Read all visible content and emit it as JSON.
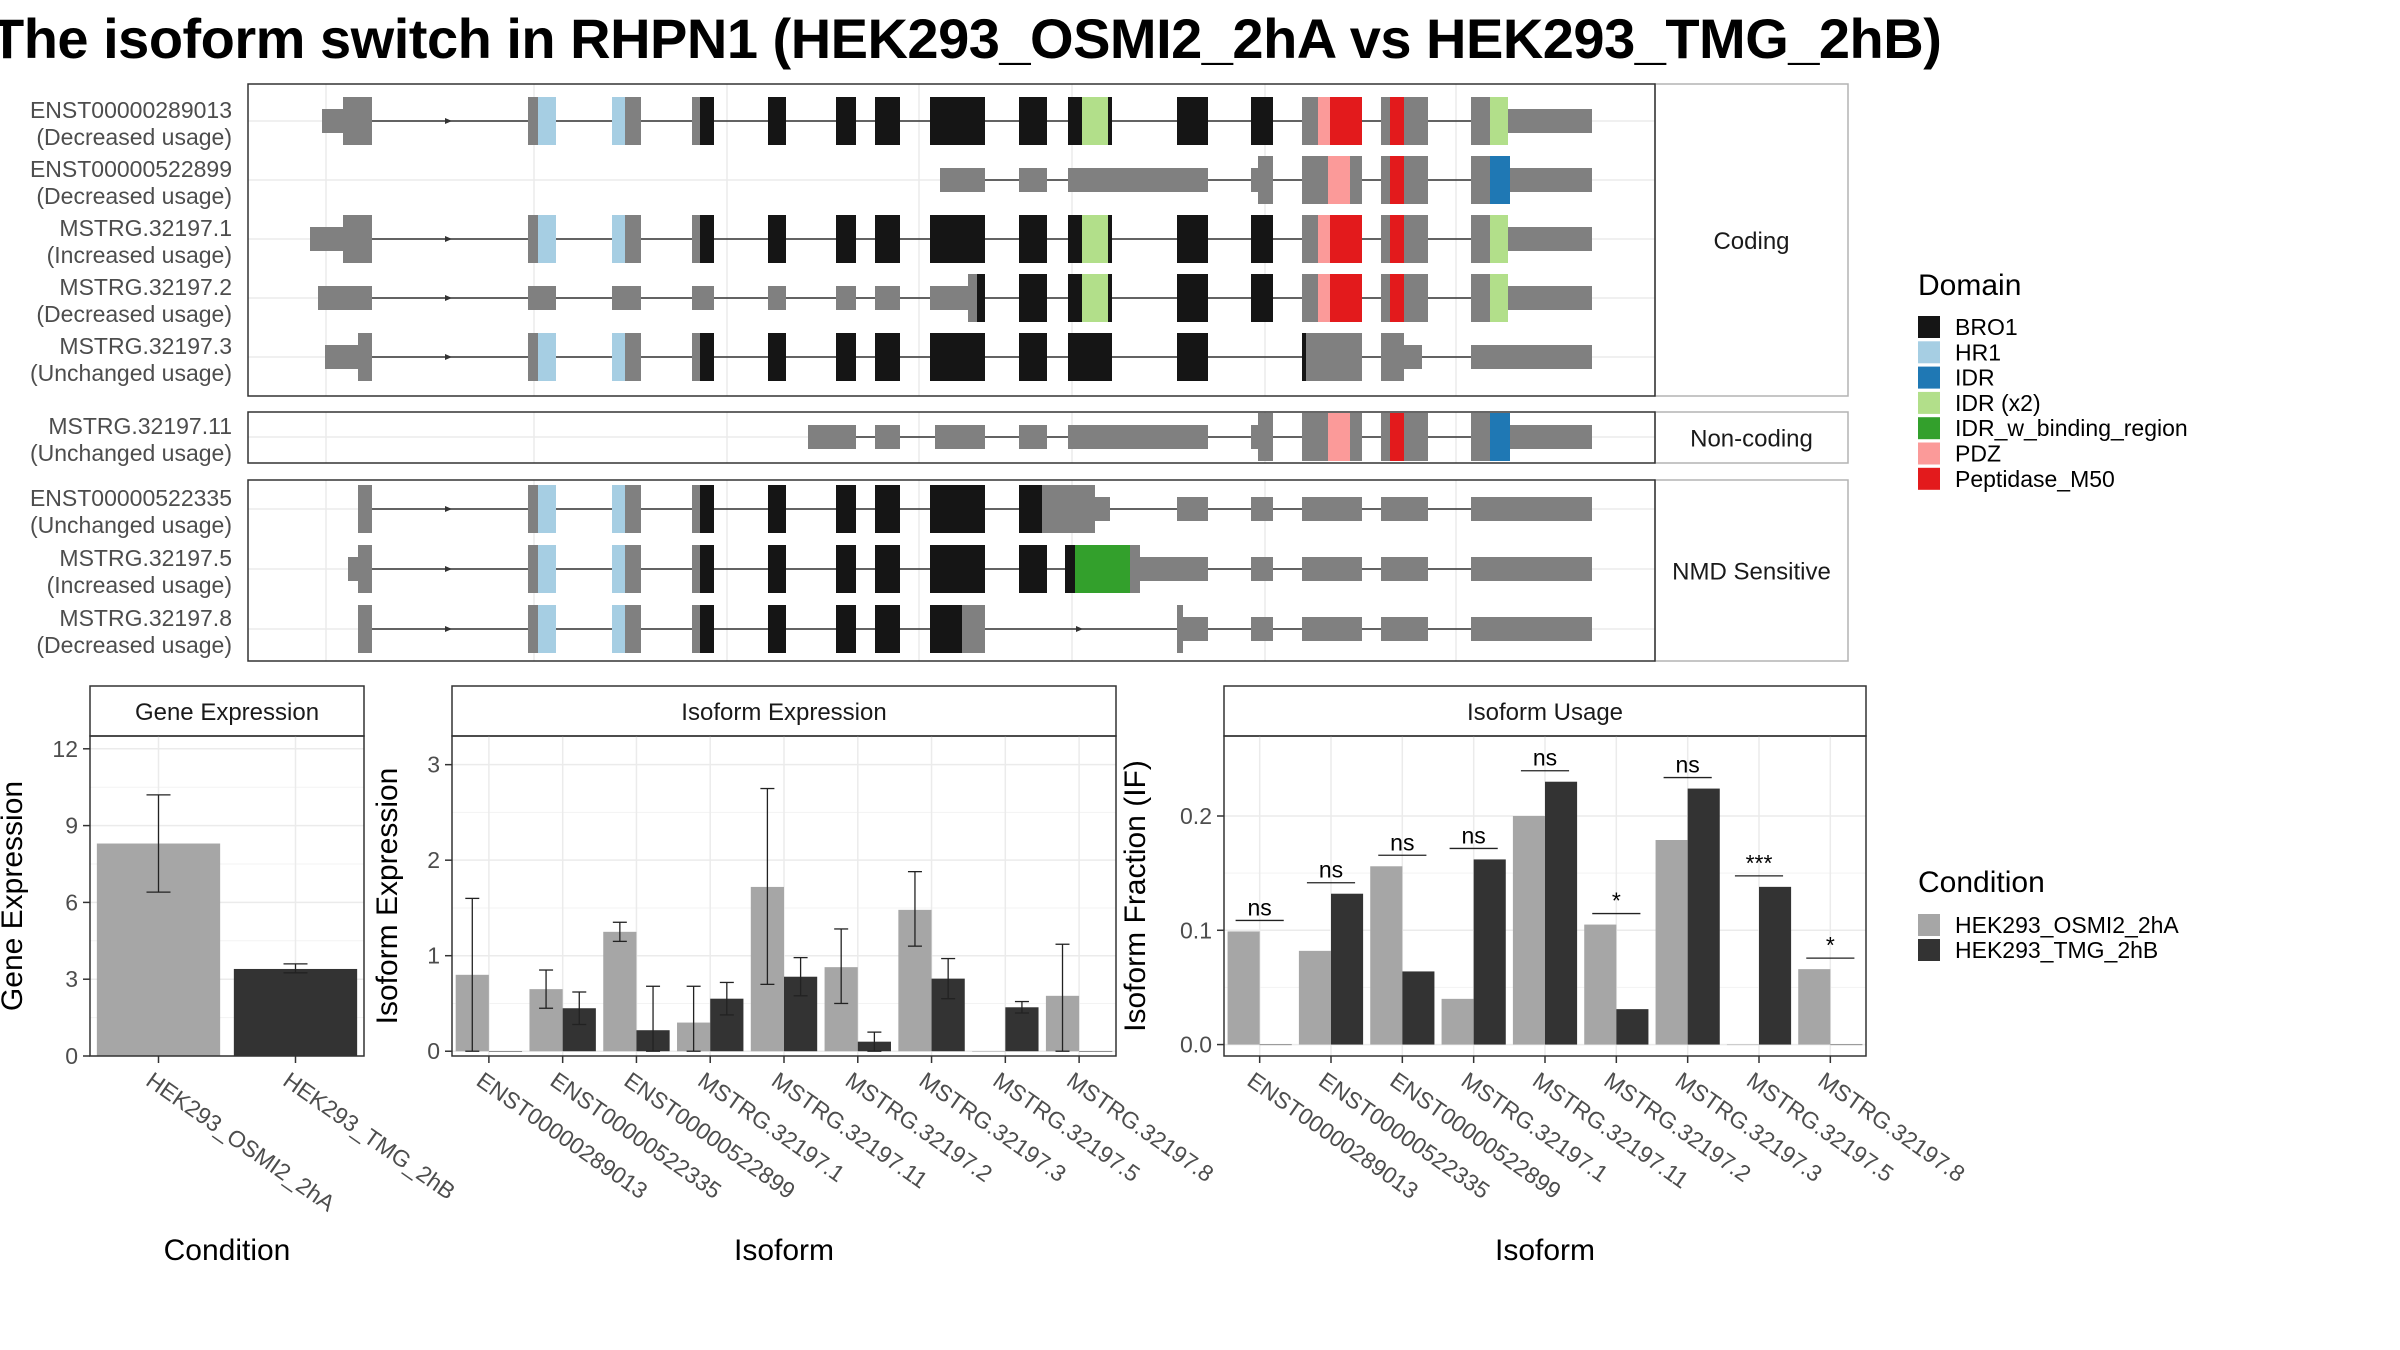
{
  "title": "The isoform switch in RHPN1 (HEK293_OSMI2_2hA vs HEK293_TMG_2hB)",
  "colors": {
    "exon": "#808080",
    "BRO1": "#151515",
    "HR1": "#a6cee3",
    "IDR": "#1f78b4",
    "IDR (x2)": "#b2df8a",
    "IDR_w_binding_region": "#33a02c",
    "PDZ": "#fb9a99",
    "Peptidase_M50": "#e31a1c",
    "cond1": "#a6a6a6",
    "cond2": "#333333"
  },
  "structure": {
    "panels": [
      {
        "label": "Coding",
        "isoforms": [
          {
            "name": "ENST00000289013",
            "usage": "(Decreased usage)"
          },
          {
            "name": "ENST00000522899",
            "usage": "(Decreased usage)"
          },
          {
            "name": "MSTRG.32197.1",
            "usage": "(Increased usage)"
          },
          {
            "name": "MSTRG.32197.2",
            "usage": "(Decreased usage)"
          },
          {
            "name": "MSTRG.32197.3",
            "usage": "(Unchanged usage)"
          }
        ]
      },
      {
        "label": "Non-coding",
        "isoforms": [
          {
            "name": "MSTRG.32197.11",
            "usage": "(Unchanged usage)"
          }
        ]
      },
      {
        "label": "NMD Sensitive",
        "isoforms": [
          {
            "name": "ENST00000522335",
            "usage": "(Unchanged usage)"
          },
          {
            "name": "MSTRG.32197.5",
            "usage": "(Increased usage)"
          },
          {
            "name": "MSTRG.32197.8",
            "usage": "(Decreased usage)"
          }
        ]
      }
    ]
  },
  "legend_domain": {
    "title": "Domain",
    "items": [
      "BRO1",
      "HR1",
      "IDR",
      "IDR (x2)",
      "IDR_w_binding_region",
      "PDZ",
      "Peptidase_M50"
    ]
  },
  "legend_condition": {
    "title": "Condition",
    "items": [
      "HEK293_OSMI2_2hA",
      "HEK293_TMG_2hB"
    ]
  },
  "chart_data": [
    {
      "type": "bar",
      "title": "Gene Expression",
      "xlabel": "Condition",
      "ylabel": "Gene Expression",
      "categories": [
        "HEK293_OSMI2_2hA",
        "HEK293_TMG_2hB"
      ],
      "values": [
        8.3,
        3.4
      ],
      "error_low": [
        6.4,
        3.25
      ],
      "error_high": [
        10.2,
        3.6
      ],
      "ylim": [
        0,
        12.5
      ],
      "yticks": [
        0,
        3,
        6,
        9,
        12
      ]
    },
    {
      "type": "bar",
      "title": "Isoform Expression",
      "xlabel": "Isoform",
      "ylabel": "Isoform Expression",
      "categories": [
        "ENST00000289013",
        "ENST00000522335",
        "ENST00000522899",
        "MSTRG.32197.1",
        "MSTRG.32197.11",
        "MSTRG.32197.2",
        "MSTRG.32197.3",
        "MSTRG.32197.5",
        "MSTRG.32197.8"
      ],
      "series": [
        {
          "name": "HEK293_OSMI2_2hA",
          "values": [
            0.8,
            0.65,
            1.25,
            0.3,
            1.72,
            0.88,
            1.48,
            0.0,
            0.58
          ],
          "error_low": [
            0.0,
            0.45,
            1.15,
            0.0,
            0.7,
            0.5,
            1.1,
            0.0,
            0.0
          ],
          "error_high": [
            1.6,
            0.85,
            1.35,
            0.68,
            2.75,
            1.28,
            1.88,
            0.0,
            1.12
          ]
        },
        {
          "name": "HEK293_TMG_2hB",
          "values": [
            0.0,
            0.45,
            0.22,
            0.55,
            0.78,
            0.1,
            0.76,
            0.46,
            0.0
          ],
          "error_low": [
            0.0,
            0.28,
            0.0,
            0.38,
            0.58,
            0.0,
            0.55,
            0.4,
            0.0
          ],
          "error_high": [
            0.0,
            0.62,
            0.68,
            0.72,
            0.98,
            0.2,
            0.97,
            0.52,
            0.0
          ]
        }
      ],
      "ylim": [
        -0.05,
        3.3
      ],
      "yticks": [
        0,
        1,
        2,
        3
      ]
    },
    {
      "type": "bar",
      "title": "Isoform Usage",
      "xlabel": "Isoform",
      "ylabel": "Isoform Fraction (IF)",
      "categories": [
        "ENST00000289013",
        "ENST00000522335",
        "ENST00000522899",
        "MSTRG.32197.1",
        "MSTRG.32197.11",
        "MSTRG.32197.2",
        "MSTRG.32197.3",
        "MSTRG.32197.5",
        "MSTRG.32197.8"
      ],
      "series": [
        {
          "name": "HEK293_OSMI2_2hA",
          "values": [
            0.099,
            0.082,
            0.156,
            0.04,
            0.2,
            0.105,
            0.179,
            0.0,
            0.066
          ]
        },
        {
          "name": "HEK293_TMG_2hB",
          "values": [
            0.0,
            0.132,
            0.064,
            0.162,
            0.23,
            0.031,
            0.224,
            0.138,
            0.0
          ]
        }
      ],
      "significance": [
        "ns",
        "ns",
        "ns",
        "ns",
        "ns",
        "*",
        "ns",
        "***",
        "*"
      ],
      "ylim": [
        -0.01,
        0.27
      ],
      "yticks": [
        0.0,
        0.1,
        0.2
      ],
      "ytick_labels": [
        "0.0",
        "0.1",
        "0.2"
      ]
    }
  ]
}
